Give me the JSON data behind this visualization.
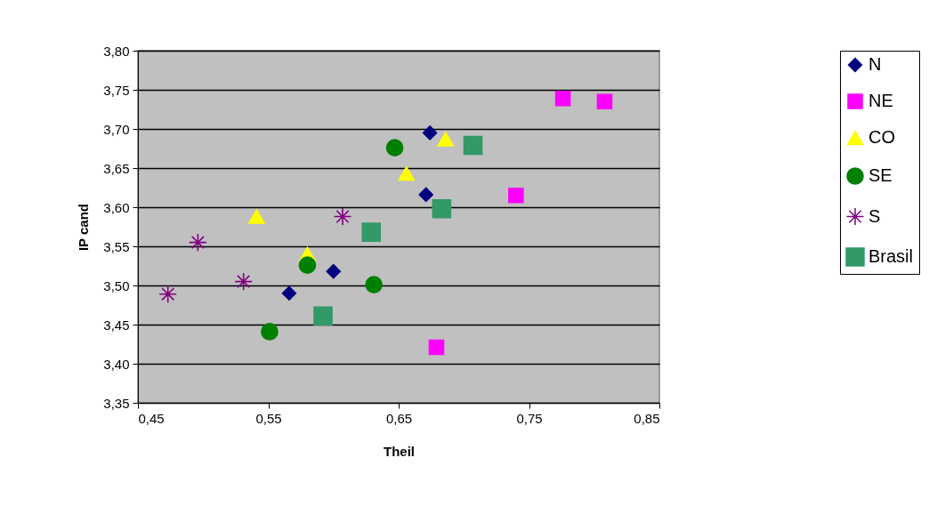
{
  "chart_data": {
    "type": "scatter",
    "xlabel": "Theil",
    "ylabel": "IP cand",
    "xlim": [
      0.45,
      0.85
    ],
    "ylim": [
      3.35,
      3.8
    ],
    "xticks": [
      {
        "value": 0.45,
        "label": "0,45"
      },
      {
        "value": 0.55,
        "label": "0,55"
      },
      {
        "value": 0.65,
        "label": "0,65"
      },
      {
        "value": 0.75,
        "label": "0,75"
      },
      {
        "value": 0.85,
        "label": "0,85"
      }
    ],
    "yticks": [
      {
        "value": 3.35,
        "label": "3,35"
      },
      {
        "value": 3.4,
        "label": "3,40"
      },
      {
        "value": 3.45,
        "label": "3,45"
      },
      {
        "value": 3.5,
        "label": "3,50"
      },
      {
        "value": 3.55,
        "label": "3,55"
      },
      {
        "value": 3.6,
        "label": "3,60"
      },
      {
        "value": 3.65,
        "label": "3,65"
      },
      {
        "value": 3.7,
        "label": "3,70"
      },
      {
        "value": 3.75,
        "label": "3,75"
      },
      {
        "value": 3.8,
        "label": "3,80"
      }
    ],
    "grid": "y",
    "legend": "right",
    "series": [
      {
        "name": "N",
        "color": "#000080",
        "marker": "diamond",
        "x": [
          0.674,
          0.671,
          0.6,
          0.566
        ],
        "values": [
          3.695,
          3.616,
          3.518,
          3.49
        ]
      },
      {
        "name": "NE",
        "color": "#ff00ff",
        "marker": "square",
        "x": [
          0.776,
          0.808,
          0.74,
          0.679
        ],
        "values": [
          3.739,
          3.735,
          3.615,
          3.421
        ]
      },
      {
        "name": "CO",
        "color": "#ffff00",
        "marker": "triangle",
        "x": [
          0.686,
          0.656,
          0.541,
          0.58
        ],
        "values": [
          3.687,
          3.643,
          3.588,
          3.54
        ]
      },
      {
        "name": "SE",
        "color": "#008000",
        "marker": "circle",
        "x": [
          0.647,
          0.58,
          0.631,
          0.551
        ],
        "values": [
          3.676,
          3.526,
          3.501,
          3.441
        ]
      },
      {
        "name": "S",
        "color": "#800080",
        "marker": "cross",
        "x": [
          0.473,
          0.496,
          0.531,
          0.607
        ],
        "values": [
          3.489,
          3.555,
          3.505,
          3.588
        ]
      },
      {
        "name": "Brasil",
        "color": "#339966",
        "marker": "square",
        "x": [
          0.707,
          0.683,
          0.629,
          0.592
        ],
        "values": [
          3.679,
          3.598,
          3.568,
          3.461
        ]
      }
    ]
  }
}
